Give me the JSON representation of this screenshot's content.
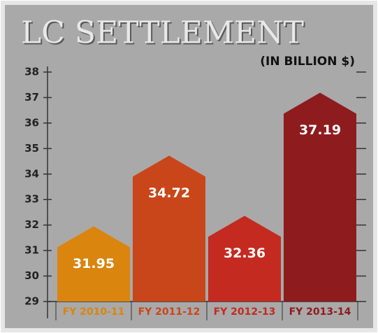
{
  "chart_data": {
    "type": "bar",
    "title": "LC SETTLEMENT",
    "subtitle": "(IN BILLION $)",
    "categories": [
      "FY 2010-11",
      "FY 2011-12",
      "FY 2012-13",
      "FY 2013-14"
    ],
    "values": [
      31.95,
      34.72,
      32.36,
      37.19
    ],
    "colors": [
      "#d9850e",
      "#c8461a",
      "#c42a20",
      "#8e1b1d"
    ],
    "ylim": [
      29,
      38
    ],
    "yticks": [
      29,
      30,
      31,
      32,
      33,
      34,
      35,
      36,
      37,
      38
    ]
  }
}
